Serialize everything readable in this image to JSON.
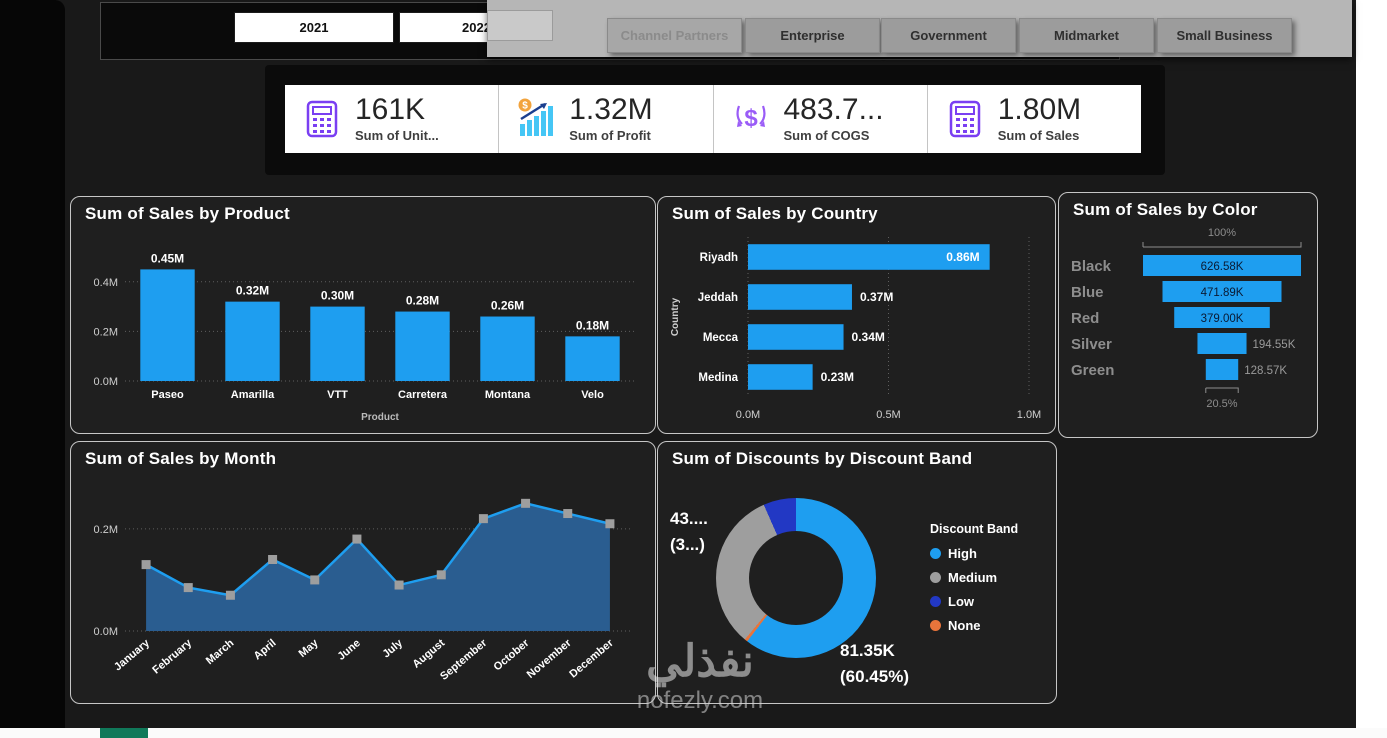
{
  "slicers": {
    "years": [
      "2021",
      "2022"
    ],
    "segments": [
      {
        "label": "Channel Partners",
        "selected": true
      },
      {
        "label": "Enterprise",
        "selected": false
      },
      {
        "label": "Government",
        "selected": false
      },
      {
        "label": "Midmarket",
        "selected": false
      },
      {
        "label": "Small Business",
        "selected": false
      }
    ]
  },
  "kpis": [
    {
      "value": "161K",
      "label": "Sum of Unit...",
      "icon": "calculator-icon"
    },
    {
      "value": "1.32M",
      "label": "Sum of Profit",
      "icon": "profit-bars-icon"
    },
    {
      "value": "483.7...",
      "label": "Sum of COGS",
      "icon": "dollar-decrease-icon"
    },
    {
      "value": "1.80M",
      "label": "Sum of Sales",
      "icon": "calculator-icon"
    }
  ],
  "chart_data": [
    {
      "id": "sales_by_product",
      "type": "bar",
      "title": "Sum of Sales by Product",
      "categories": [
        "Paseo",
        "Amarilla",
        "VTT",
        "Carretera",
        "Montana",
        "Velo"
      ],
      "values": [
        0.45,
        0.32,
        0.3,
        0.28,
        0.26,
        0.18
      ],
      "labels": [
        "0.45M",
        "0.32M",
        "0.30M",
        "0.28M",
        "0.26M",
        "0.18M"
      ],
      "xlabel": "Product",
      "ylabel": "",
      "ylim": [
        0,
        0.5
      ],
      "ytick_values": [
        0,
        0.2,
        0.4
      ],
      "ytick_labels": [
        "0.0M",
        "0.2M",
        "0.4M"
      ],
      "grid": "dotted",
      "bar_color": "#1E9EF0"
    },
    {
      "id": "sales_by_country",
      "type": "bar",
      "orientation": "horizontal",
      "title": "Sum of Sales by Country",
      "categories": [
        "Riyadh",
        "Jeddah",
        "Mecca",
        "Medina"
      ],
      "values": [
        0.86,
        0.37,
        0.34,
        0.23
      ],
      "labels": [
        "0.86M",
        "0.37M",
        "0.34M",
        "0.23M"
      ],
      "ylabel": "Country",
      "xlim": [
        0,
        1.0
      ],
      "xtick_values": [
        0,
        0.5,
        1.0
      ],
      "xtick_labels": [
        "0.0M",
        "0.5M",
        "1.0M"
      ],
      "grid": "dotted",
      "bar_color": "#1E9EF0"
    },
    {
      "id": "sales_by_color",
      "type": "bar",
      "subtype": "funnel",
      "title": "Sum of Sales by Color",
      "categories": [
        "Black",
        "Blue",
        "Red",
        "Silver",
        "Green"
      ],
      "values": [
        626.58,
        471.89,
        379.0,
        194.55,
        128.57
      ],
      "labels": [
        "626.58K",
        "471.89K",
        "379.00K",
        "194.55K",
        "128.57K"
      ],
      "top_percent": "100%",
      "bottom_percent": "20.5%",
      "bar_color": "#1E9EF0"
    },
    {
      "id": "sales_by_month",
      "type": "area",
      "title": "Sum of Sales by Month",
      "categories": [
        "January",
        "February",
        "March",
        "April",
        "May",
        "June",
        "July",
        "August",
        "September",
        "October",
        "November",
        "December"
      ],
      "values": [
        0.13,
        0.085,
        0.07,
        0.14,
        0.1,
        0.18,
        0.09,
        0.11,
        0.22,
        0.25,
        0.23,
        0.21
      ],
      "ylim": [
        0,
        0.28
      ],
      "ytick_values": [
        0,
        0.2
      ],
      "ytick_labels": [
        "0.0M",
        "0.2M"
      ],
      "grid": "dotted",
      "line_color": "#1E9EF0",
      "fill_color": "#2a5d90",
      "marker_color": "#9e9e9e"
    },
    {
      "id": "discounts_by_band",
      "type": "pie",
      "subtype": "donut",
      "title": "Sum of Discounts by Discount Band",
      "legend_title": "Discount Band",
      "legend_position": "right",
      "series": [
        {
          "name": "High",
          "percent": 60.45,
          "color": "#1E9EF0"
        },
        {
          "name": "Medium",
          "percent": 32.35,
          "color": "#9E9E9E"
        },
        {
          "name": "Low",
          "percent": 6.6,
          "color": "#2238c4"
        },
        {
          "name": "None",
          "percent": 0.6,
          "color": "#E8743B"
        }
      ],
      "draw_order": [
        "High",
        "None",
        "Medium",
        "Low"
      ],
      "callout_top": [
        "43....",
        "(3...)"
      ],
      "callout_bottom": [
        "81.35K",
        "(60.45%)"
      ]
    }
  ],
  "watermark": {
    "text": "نفذلي",
    "domain": "nofezly.com"
  }
}
